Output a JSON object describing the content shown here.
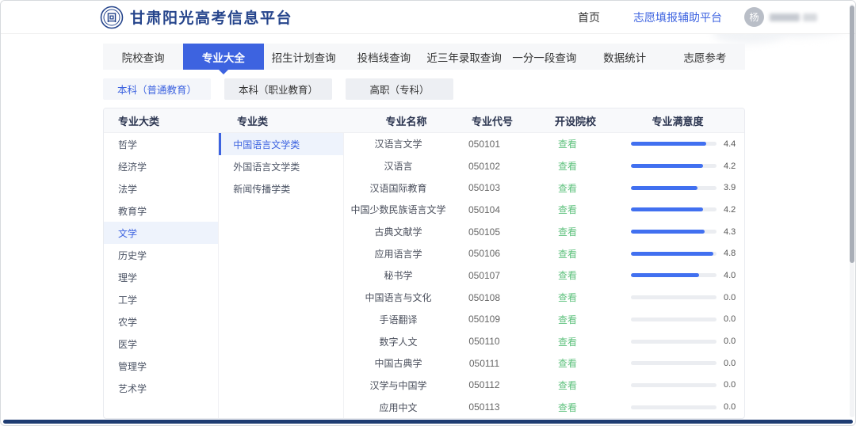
{
  "header": {
    "title": "甘肃阳光高考信息平台",
    "home_label": "首页",
    "assist_label": "志愿填报辅助平台",
    "avatar_text": "杨"
  },
  "tabs": [
    {
      "label": "院校查询",
      "active": false
    },
    {
      "label": "专业大全",
      "active": true
    },
    {
      "label": "招生计划查询",
      "active": false
    },
    {
      "label": "投档线查询",
      "active": false
    },
    {
      "label": "近三年录取查询",
      "active": false
    },
    {
      "label": "一分一段查询",
      "active": false
    },
    {
      "label": "数据统计",
      "active": false
    },
    {
      "label": "志愿参考",
      "active": false
    }
  ],
  "subtabs": [
    {
      "label": "本科（普通教育）",
      "active": true
    },
    {
      "label": "本科（职业教育）",
      "active": false
    },
    {
      "label": "高职（专科）",
      "active": false
    }
  ],
  "table": {
    "headers": [
      "专业大类",
      "专业类",
      "专业名称",
      "专业代号",
      "开设院校",
      "专业满意度"
    ],
    "categories": [
      {
        "label": "哲学",
        "active": false
      },
      {
        "label": "经济学",
        "active": false
      },
      {
        "label": "法学",
        "active": false
      },
      {
        "label": "教育学",
        "active": false
      },
      {
        "label": "文学",
        "active": true
      },
      {
        "label": "历史学",
        "active": false
      },
      {
        "label": "理学",
        "active": false
      },
      {
        "label": "工学",
        "active": false
      },
      {
        "label": "农学",
        "active": false
      },
      {
        "label": "医学",
        "active": false
      },
      {
        "label": "管理学",
        "active": false
      },
      {
        "label": "艺术学",
        "active": false
      }
    ],
    "classes": [
      {
        "label": "中国语言文学类",
        "active": true
      },
      {
        "label": "外国语言文学类",
        "active": false
      },
      {
        "label": "新闻传播学类",
        "active": false
      }
    ],
    "view_label": "查看",
    "score_max": 5,
    "rows": [
      {
        "name": "汉语言文学",
        "code": "050101",
        "score": "4.4"
      },
      {
        "name": "汉语言",
        "code": "050102",
        "score": "4.2"
      },
      {
        "name": "汉语国际教育",
        "code": "050103",
        "score": "3.9"
      },
      {
        "name": "中国少数民族语言文学",
        "code": "050104",
        "score": "4.2"
      },
      {
        "name": "古典文献学",
        "code": "050105",
        "score": "4.3"
      },
      {
        "name": "应用语言学",
        "code": "050106",
        "score": "4.8"
      },
      {
        "name": "秘书学",
        "code": "050107",
        "score": "4.0"
      },
      {
        "name": "中国语言与文化",
        "code": "050108",
        "score": "0.0"
      },
      {
        "name": "手语翻译",
        "code": "050109",
        "score": "0.0"
      },
      {
        "name": "数字人文",
        "code": "050110",
        "score": "0.0"
      },
      {
        "name": "中国古典学",
        "code": "050111",
        "score": "0.0"
      },
      {
        "name": "汉学与中国学",
        "code": "050112",
        "score": "0.0"
      },
      {
        "name": "应用中文",
        "code": "050113",
        "score": "0.0"
      }
    ]
  },
  "colors": {
    "accent_blue": "#3d63e0",
    "brand_navy": "#26458c",
    "bar_blue": "#4170f0",
    "link_green": "#5ec17d",
    "selected_bg": "#eef3fc",
    "bottom_bar": "#1e3c72"
  }
}
